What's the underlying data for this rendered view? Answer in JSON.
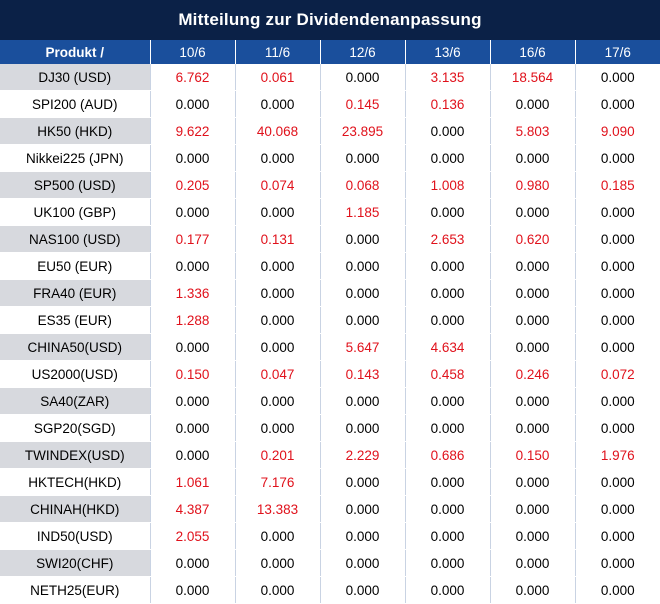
{
  "title": "Mitteilung zur Dividendenanpassung",
  "header": {
    "product_label": "Produkt /",
    "dates": [
      "10/6",
      "11/6",
      "12/6",
      "13/6",
      "16/6",
      "17/6"
    ]
  },
  "colors": {
    "title_bg": "#0b2147",
    "header_bg": "#1a4f9c",
    "positive_value": "#e0111b",
    "zero_value": "#000000",
    "product_cell_band": "#d7d9de"
  },
  "rows": [
    {
      "product": "DJ30 (USD)",
      "values": [
        "6.762",
        "0.061",
        "0.000",
        "3.135",
        "18.564",
        "0.000"
      ]
    },
    {
      "product": "SPI200 (AUD)",
      "values": [
        "0.000",
        "0.000",
        "0.145",
        "0.136",
        "0.000",
        "0.000"
      ]
    },
    {
      "product": "HK50 (HKD)",
      "values": [
        "9.622",
        "40.068",
        "23.895",
        "0.000",
        "5.803",
        "9.090"
      ]
    },
    {
      "product": "Nikkei225 (JPN)",
      "values": [
        "0.000",
        "0.000",
        "0.000",
        "0.000",
        "0.000",
        "0.000"
      ]
    },
    {
      "product": "SP500 (USD)",
      "values": [
        "0.205",
        "0.074",
        "0.068",
        "1.008",
        "0.980",
        "0.185"
      ]
    },
    {
      "product": "UK100 (GBP)",
      "values": [
        "0.000",
        "0.000",
        "1.185",
        "0.000",
        "0.000",
        "0.000"
      ]
    },
    {
      "product": "NAS100 (USD)",
      "values": [
        "0.177",
        "0.131",
        "0.000",
        "2.653",
        "0.620",
        "0.000"
      ]
    },
    {
      "product": "EU50 (EUR)",
      "values": [
        "0.000",
        "0.000",
        "0.000",
        "0.000",
        "0.000",
        "0.000"
      ]
    },
    {
      "product": "FRA40 (EUR)",
      "values": [
        "1.336",
        "0.000",
        "0.000",
        "0.000",
        "0.000",
        "0.000"
      ]
    },
    {
      "product": "ES35 (EUR)",
      "values": [
        "1.288",
        "0.000",
        "0.000",
        "0.000",
        "0.000",
        "0.000"
      ]
    },
    {
      "product": "CHINA50(USD)",
      "values": [
        "0.000",
        "0.000",
        "5.647",
        "4.634",
        "0.000",
        "0.000"
      ]
    },
    {
      "product": "US2000(USD)",
      "values": [
        "0.150",
        "0.047",
        "0.143",
        "0.458",
        "0.246",
        "0.072"
      ]
    },
    {
      "product": "SA40(ZAR)",
      "values": [
        "0.000",
        "0.000",
        "0.000",
        "0.000",
        "0.000",
        "0.000"
      ]
    },
    {
      "product": "SGP20(SGD)",
      "values": [
        "0.000",
        "0.000",
        "0.000",
        "0.000",
        "0.000",
        "0.000"
      ]
    },
    {
      "product": "TWINDEX(USD)",
      "values": [
        "0.000",
        "0.201",
        "2.229",
        "0.686",
        "0.150",
        "1.976"
      ]
    },
    {
      "product": "HKTECH(HKD)",
      "values": [
        "1.061",
        "7.176",
        "0.000",
        "0.000",
        "0.000",
        "0.000"
      ]
    },
    {
      "product": "CHINAH(HKD)",
      "values": [
        "4.387",
        "13.383",
        "0.000",
        "0.000",
        "0.000",
        "0.000"
      ]
    },
    {
      "product": "IND50(USD)",
      "values": [
        "2.055",
        "0.000",
        "0.000",
        "0.000",
        "0.000",
        "0.000"
      ]
    },
    {
      "product": "SWI20(CHF)",
      "values": [
        "0.000",
        "0.000",
        "0.000",
        "0.000",
        "0.000",
        "0.000"
      ]
    },
    {
      "product": "NETH25(EUR)",
      "values": [
        "0.000",
        "0.000",
        "0.000",
        "0.000",
        "0.000",
        "0.000"
      ]
    }
  ]
}
